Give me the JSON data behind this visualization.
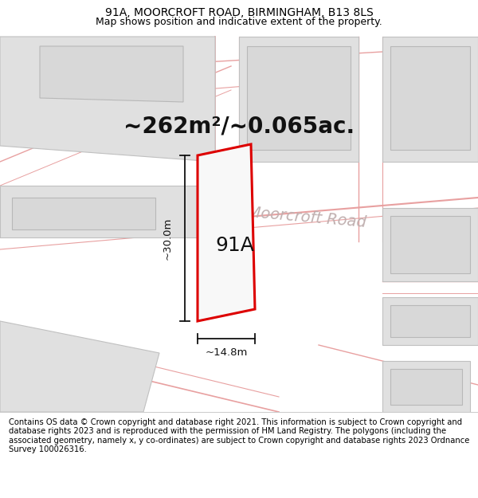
{
  "title_line1": "91A, MOORCROFT ROAD, BIRMINGHAM, B13 8LS",
  "title_line2": "Map shows position and indicative extent of the property.",
  "area_label": "~262m²/~0.065ac.",
  "property_label": "91A",
  "dim_width": "~14.8m",
  "dim_height": "~30.0m",
  "road_label": "Moorcroft Road",
  "footer_text": "Contains OS data © Crown copyright and database right 2021. This information is subject to Crown copyright and database rights 2023 and is reproduced with the permission of HM Land Registry. The polygons (including the associated geometry, namely x, y co-ordinates) are subject to Crown copyright and database rights 2023 Ordnance Survey 100026316.",
  "map_bg": "#ffffff",
  "building_fill": "#e0e0e0",
  "building_stroke": "#c0c0c0",
  "road_line_color": "#e8a0a0",
  "road_outline_color": "#f0c0c0",
  "property_fill": "#f8f8f8",
  "property_stroke": "#dd0000",
  "dim_color": "#111111",
  "road_label_color": "#c0b0b0",
  "title_fontsize": 10,
  "subtitle_fontsize": 9,
  "area_fontsize": 20,
  "label_fontsize": 18,
  "road_fontsize": 14,
  "footer_fontsize": 7.2,
  "dim_fontsize": 9.5
}
